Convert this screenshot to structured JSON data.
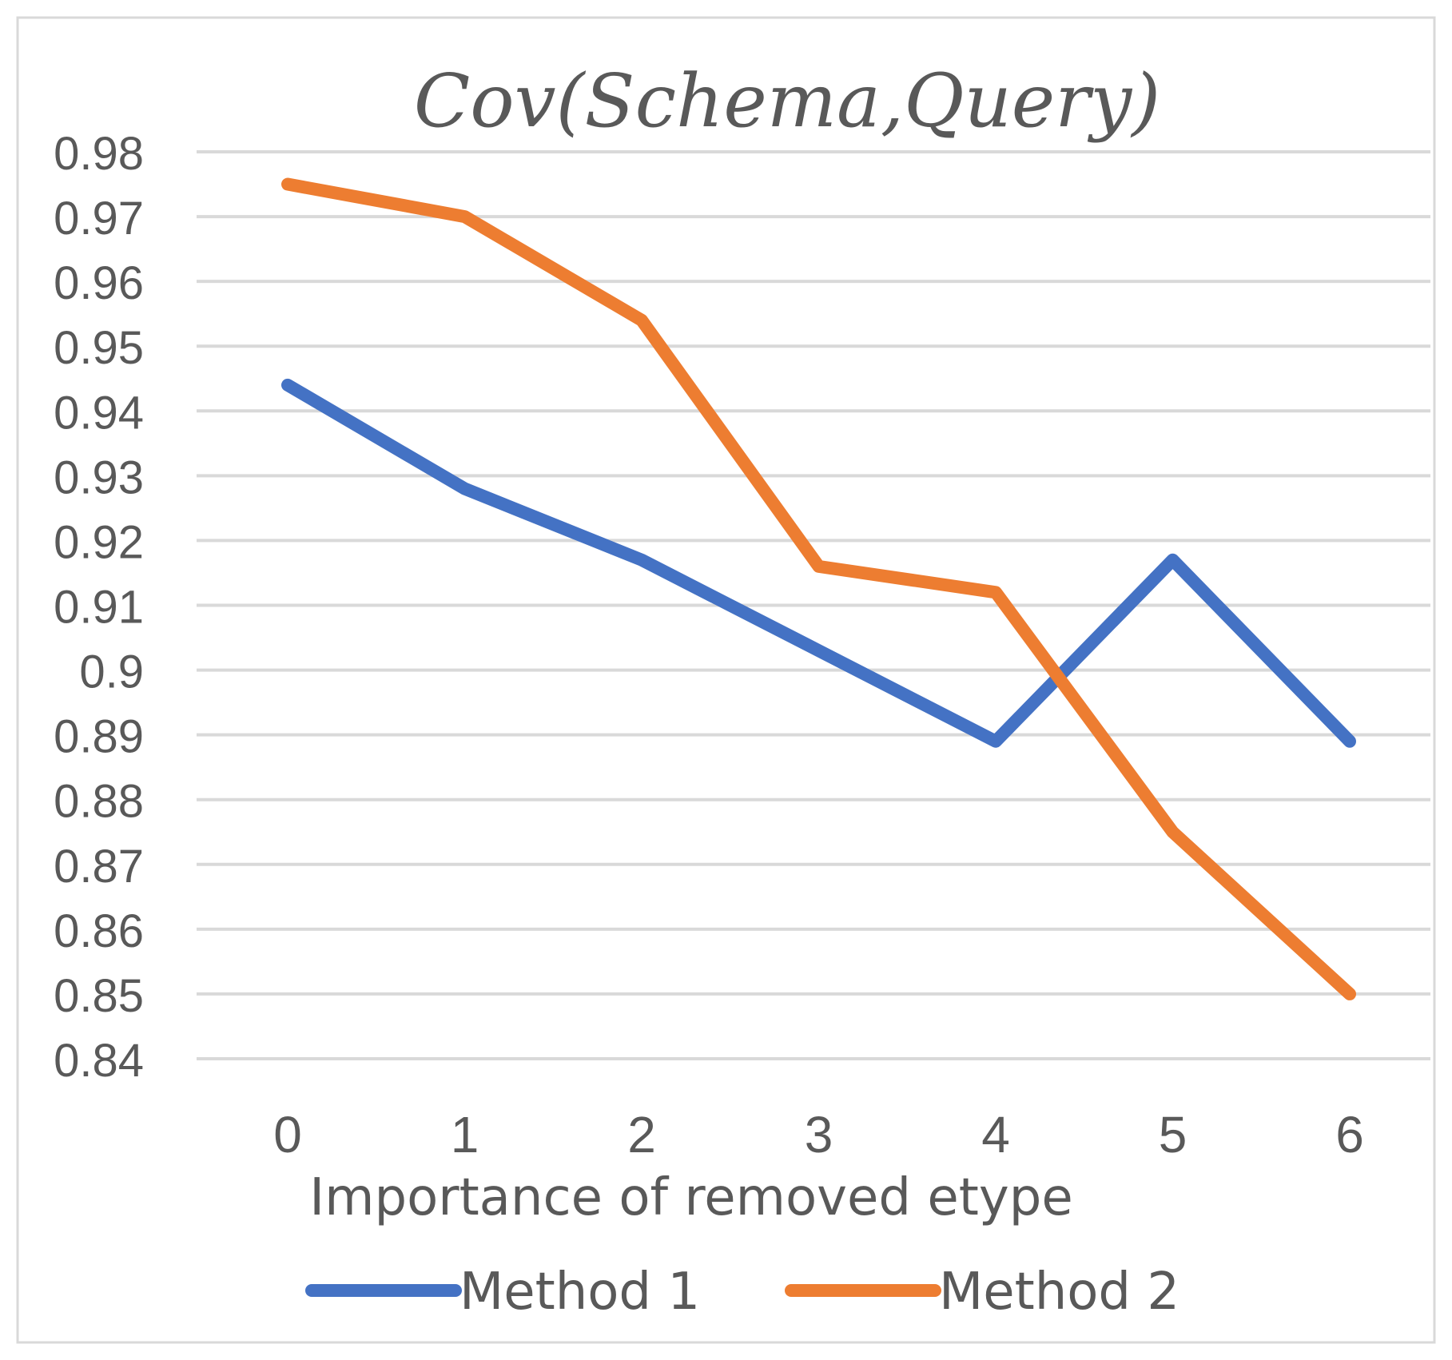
{
  "chart_data": {
    "type": "line",
    "title": "Cov(Schema,Query)",
    "xlabel": "Importance of removed etype",
    "ylabel": "",
    "categories": [
      "0",
      "1",
      "2",
      "3",
      "4",
      "5",
      "6"
    ],
    "yticks": [
      "0.98",
      "0.97",
      "0.96",
      "0.95",
      "0.94",
      "0.93",
      "0.92",
      "0.91",
      "0.9",
      "0.89",
      "0.88",
      "0.87",
      "0.86",
      "0.85",
      "0.84"
    ],
    "ylim": [
      0.84,
      0.98
    ],
    "grid": true,
    "legend_position": "bottom",
    "series": [
      {
        "name": "Method 1",
        "color": "#4472C4",
        "values": [
          0.944,
          0.928,
          0.917,
          0.903,
          0.889,
          0.917,
          0.889
        ]
      },
      {
        "name": "Method 2",
        "color": "#ED7D31",
        "values": [
          0.975,
          0.97,
          0.954,
          0.916,
          0.912,
          0.875,
          0.85
        ]
      }
    ]
  }
}
